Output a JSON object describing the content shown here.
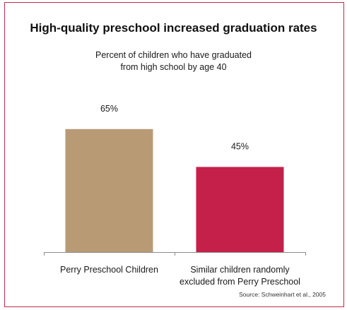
{
  "title": "High-quality preschool increased graduation rates",
  "subtitle_lines": [
    "Percent of children who have graduated",
    "from high school by age 40"
  ],
  "source": "Source: Schweinhart et al., 2005",
  "colors": {
    "frame": "#c22a4a",
    "axis": "#8c8c8c"
  },
  "chart_data": {
    "type": "bar",
    "categories": [
      [
        "Perry Preschool Children"
      ],
      [
        "Similar children randomly",
        "excluded from Perry Preschool"
      ]
    ],
    "values": [
      65,
      45
    ],
    "value_labels": [
      "65%",
      "45%"
    ],
    "colors": [
      "#b89a74",
      "#c42049"
    ],
    "ylim": [
      0,
      100
    ],
    "xlabel": "",
    "ylabel": "",
    "grid": false,
    "legend": "none"
  }
}
